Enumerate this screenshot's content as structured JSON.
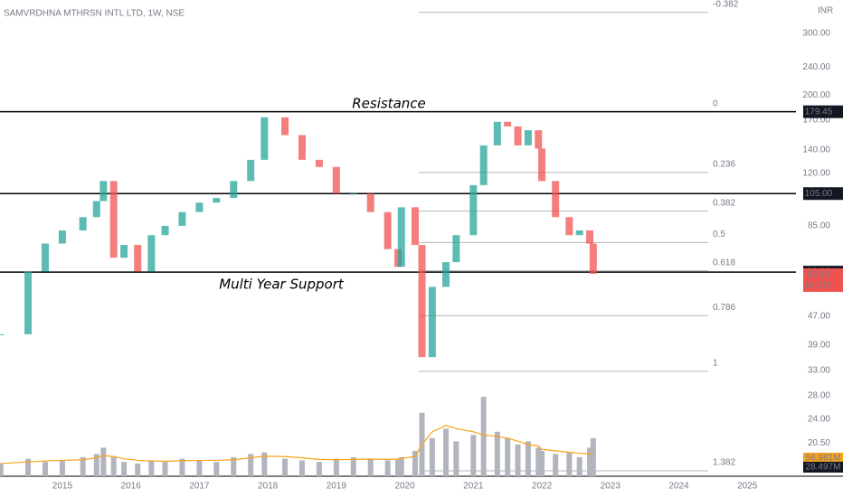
{
  "chart_data": {
    "type": "candlestick",
    "title": "SAMVRDHNA MTHRSN INTL LTD, 1W, NSE",
    "currency": "INR",
    "log_scale": true,
    "xlim": [
      2014.09,
      2025.71
    ],
    "xticks": [
      2015,
      2016,
      2017,
      2018,
      2019,
      2020,
      2021,
      2022,
      2023,
      2024,
      2025
    ],
    "ylim": [
      16.5,
      373
    ],
    "yticks": [
      {
        "value": 300,
        "label": "300.00"
      },
      {
        "value": 240,
        "label": "240.00"
      },
      {
        "value": 200,
        "label": "200.00"
      },
      {
        "value": 170,
        "label": "170.00"
      },
      {
        "value": 140,
        "label": "140.00"
      },
      {
        "value": 120,
        "label": "120.00"
      },
      {
        "value": 85,
        "label": "85.00"
      },
      {
        "value": 47,
        "label": "47.00"
      },
      {
        "value": 39,
        "label": "39.00"
      },
      {
        "value": 33,
        "label": "33.00"
      },
      {
        "value": 28,
        "label": "28.00"
      },
      {
        "value": 24,
        "label": "24.00"
      },
      {
        "value": 20.5,
        "label": "20.50"
      }
    ],
    "up_color": "#26a69a",
    "down_color": "#ef5350",
    "x": [
      2014.1,
      2014.5,
      2014.75,
      2015.0,
      2015.3,
      2015.5,
      2015.6,
      2015.75,
      2015.9,
      2016.1,
      2016.3,
      2016.5,
      2016.75,
      2017.0,
      2017.25,
      2017.5,
      2017.75,
      2017.95,
      2018.25,
      2018.5,
      2018.75,
      2019.0,
      2019.25,
      2019.5,
      2019.75,
      2019.9,
      2019.95,
      2020.15,
      2020.25,
      2020.4,
      2020.6,
      2020.75,
      2021.0,
      2021.15,
      2021.35,
      2021.5,
      2021.65,
      2021.8,
      2021.95,
      2022.0,
      2022.2,
      2022.4,
      2022.55,
      2022.7,
      2022.75
    ],
    "close": [
      41.8,
      63,
      75.7,
      82.5,
      90,
      100,
      114,
      69,
      75,
      63,
      80,
      85,
      93,
      99,
      102,
      114,
      131,
      173,
      154,
      131,
      125,
      105,
      105,
      93,
      73,
      65,
      96,
      75,
      36,
      57,
      67,
      80,
      111,
      144,
      168,
      163,
      144,
      159,
      141,
      114,
      90,
      80,
      82.5,
      75.7,
      62.1
    ],
    "volume_lim": [
      0,
      1500
    ],
    "volume_color": "#b2b5be",
    "volume": [
      40,
      55,
      45,
      50,
      60,
      70,
      90,
      60,
      45,
      40,
      50,
      45,
      55,
      50,
      45,
      60,
      70,
      75,
      55,
      50,
      45,
      55,
      60,
      55,
      50,
      55,
      60,
      80,
      200,
      120,
      150,
      110,
      130,
      250,
      140,
      120,
      100,
      110,
      90,
      80,
      70,
      75,
      60,
      90,
      120
    ],
    "volume_ma_color": "#f7a21b",
    "volume_ma": [
      40,
      45,
      48,
      50,
      52,
      58,
      65,
      62,
      55,
      50,
      48,
      47,
      49,
      50,
      50,
      52,
      58,
      63,
      62,
      58,
      53,
      52,
      53,
      54,
      53,
      54,
      56,
      62,
      100,
      140,
      160,
      150,
      140,
      130,
      125,
      120,
      110,
      100,
      95,
      85,
      80,
      75,
      72,
      70,
      72
    ],
    "volume_labels": [
      {
        "value": 56.981,
        "label": "56.981M"
      },
      {
        "value": 28.497,
        "label": "28.497M"
      }
    ],
    "levels": [
      {
        "value": 179.45,
        "label": "179.45"
      },
      {
        "value": 105,
        "label": "105.00"
      },
      {
        "value": 62.8,
        "label": "62.80"
      }
    ],
    "last": {
      "value": 62.1,
      "label": "62.10"
    },
    "countdown": "2d 21h",
    "fib_levels": [
      {
        "level": -0.382,
        "price": 344
      },
      {
        "level": 0,
        "price": 179.45
      },
      {
        "level": 0.236,
        "price": 120.6
      },
      {
        "level": 0.382,
        "price": 93.6
      },
      {
        "level": 0.5,
        "price": 76.2
      },
      {
        "level": 0.618,
        "price": 63.3
      },
      {
        "level": 0.786,
        "price": 47.2
      },
      {
        "level": 1,
        "price": 32.8
      },
      {
        "level": 1.382,
        "price": 17.1
      }
    ],
    "annotations": [
      "Resistance",
      "Multi Year Support"
    ]
  }
}
